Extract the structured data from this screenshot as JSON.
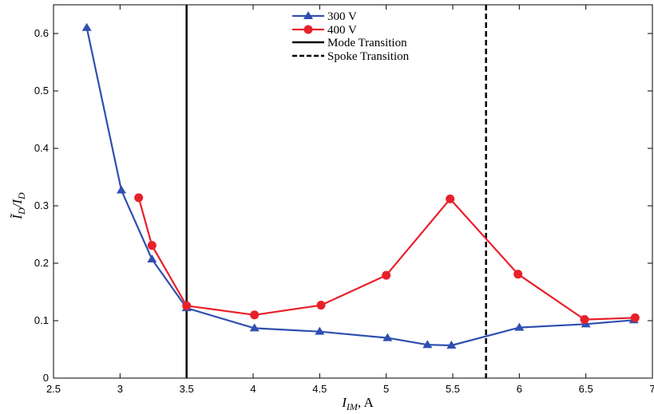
{
  "chart_data": {
    "type": "line",
    "xlabel": "I_IM, A",
    "xlabel_main": "I",
    "xlabel_sub": "IM",
    "xlabel_unit": ", A",
    "ylabel_text": "Ĩ_D / I_D",
    "ylabel_num": "Ĩ",
    "ylabel_num_sub": "D",
    "ylabel_den": "/I",
    "ylabel_den_sub": "D",
    "xlim": [
      2.5,
      7
    ],
    "ylim": [
      0,
      0.65
    ],
    "x_ticks": [
      "2.5",
      "3",
      "3.5",
      "4",
      "4.5",
      "5",
      "5.5",
      "6",
      "6.5",
      "7"
    ],
    "y_ticks": [
      "0",
      "0.1",
      "0.2",
      "0.3",
      "0.4",
      "0.5",
      "0.6"
    ],
    "grid": false,
    "legend_position": "top-center",
    "series": [
      {
        "name": "300 V",
        "color": "#2f4fb0",
        "marker": "triangle",
        "x": [
          2.75,
          3.01,
          3.24,
          3.5,
          4.01,
          4.5,
          5.01,
          5.31,
          5.49,
          6.0,
          6.5,
          6.86
        ],
        "y": [
          0.61,
          0.327,
          0.207,
          0.122,
          0.087,
          0.081,
          0.07,
          0.058,
          0.057,
          0.088,
          0.094,
          0.101
        ]
      },
      {
        "name": "400 V",
        "color": "#e8202a",
        "marker": "circle",
        "x": [
          3.14,
          3.24,
          3.5,
          4.01,
          4.51,
          5.0,
          5.48,
          5.99,
          6.49,
          6.87
        ],
        "y": [
          0.314,
          0.231,
          0.126,
          0.11,
          0.127,
          0.179,
          0.312,
          0.181,
          0.102,
          0.105
        ]
      }
    ],
    "vertical_lines": [
      {
        "name": "Mode Transition",
        "x": 3.5,
        "style": "solid",
        "color": "#000000"
      },
      {
        "name": "Spoke Transition",
        "x": 5.75,
        "style": "dashed",
        "color": "#000000"
      }
    ]
  }
}
